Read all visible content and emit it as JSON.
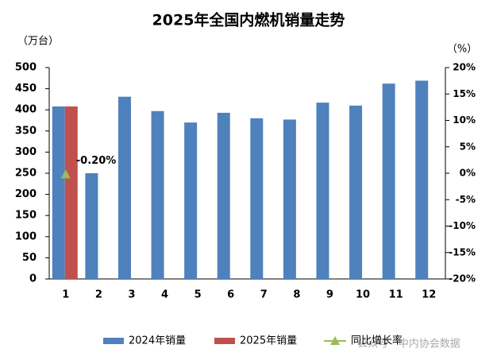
{
  "chart_data": {
    "type": "bar",
    "title": "2025年全国内燃机销量走势",
    "y_label": "（万台）",
    "y2_label": "（%）",
    "categories": [
      "1",
      "2",
      "3",
      "4",
      "5",
      "6",
      "7",
      "8",
      "9",
      "10",
      "11",
      "12"
    ],
    "series": [
      {
        "name": "2024年销量",
        "color": "#4f81bd",
        "values": [
          408,
          250,
          431,
          397,
          370,
          393,
          380,
          377,
          417,
          410,
          462,
          469
        ]
      },
      {
        "name": "2025年销量",
        "color": "#c0504d",
        "values": [
          408,
          null,
          null,
          null,
          null,
          null,
          null,
          null,
          null,
          null,
          null,
          null
        ]
      },
      {
        "name": "同比增长率",
        "color": "#9bbb59",
        "axis": "y2",
        "type": "line",
        "values": [
          -0.2,
          null,
          null,
          null,
          null,
          null,
          null,
          null,
          null,
          null,
          null,
          null
        ],
        "value_labels": [
          "-0.20%",
          null,
          null,
          null,
          null,
          null,
          null,
          null,
          null,
          null,
          null,
          null
        ]
      }
    ],
    "ylim": [
      0,
      500
    ],
    "yticks": [
      0,
      50,
      100,
      150,
      200,
      250,
      300,
      350,
      400,
      450,
      500
    ],
    "y2lim": [
      -20,
      20
    ],
    "y2ticks": [
      {
        "value": -20,
        "label": "-20%"
      },
      {
        "value": -15,
        "label": "-15%"
      },
      {
        "value": -10,
        "label": "-10%"
      },
      {
        "value": -5,
        "label": "-5%"
      },
      {
        "value": 0,
        "label": "0%"
      },
      {
        "value": 5,
        "label": "5%"
      },
      {
        "value": 10,
        "label": "10%"
      },
      {
        "value": 15,
        "label": "15%"
      },
      {
        "value": 20,
        "label": "20%"
      }
    ],
    "grid": false,
    "legend": "bottom",
    "watermark": "公众号 · 中内协会数据"
  }
}
